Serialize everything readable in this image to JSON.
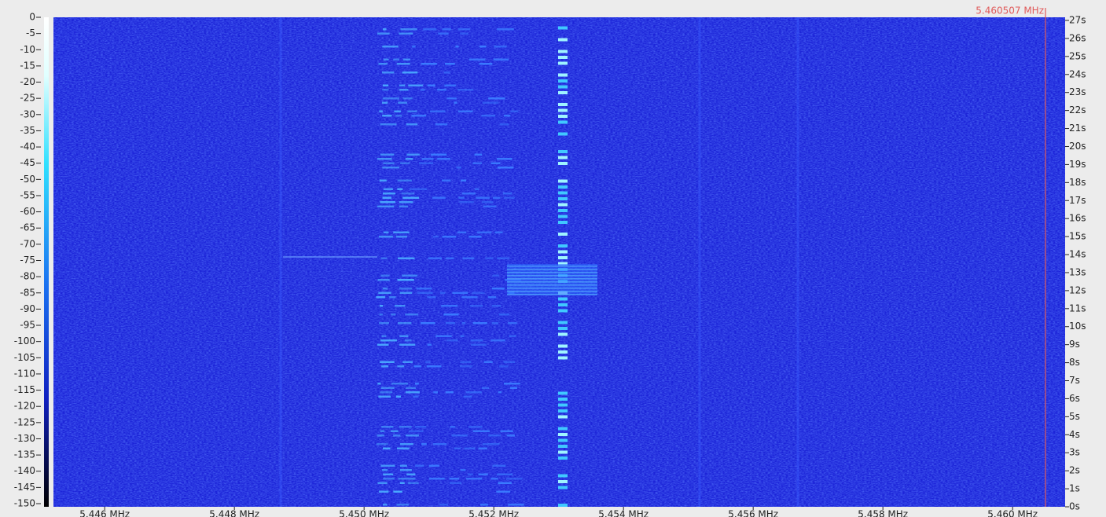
{
  "chart_data": {
    "type": "waterfall",
    "ylim": [
      -150,
      0
    ],
    "yticks": [
      0,
      -5,
      -10,
      -15,
      -20,
      -25,
      -30,
      -35,
      -40,
      -45,
      -50,
      -55,
      -60,
      -65,
      -70,
      -75,
      -80,
      -85,
      -90,
      -95,
      -100,
      -105,
      -110,
      -115,
      -120,
      -125,
      -130,
      -135,
      -140,
      -145,
      -150
    ],
    "y2lim": [
      0,
      27
    ],
    "y2ticks": [
      {
        "value": 0,
        "label": "0s"
      },
      {
        "value": 1,
        "label": "1s"
      },
      {
        "value": 2,
        "label": "2s"
      },
      {
        "value": 3,
        "label": "3s"
      },
      {
        "value": 4,
        "label": "4s"
      },
      {
        "value": 5,
        "label": "5s"
      },
      {
        "value": 6,
        "label": "6s"
      },
      {
        "value": 7,
        "label": "7s"
      },
      {
        "value": 8,
        "label": "8s"
      },
      {
        "value": 9,
        "label": "9s"
      },
      {
        "value": 10,
        "label": "10s"
      },
      {
        "value": 11,
        "label": "11s"
      },
      {
        "value": 12,
        "label": "12s"
      },
      {
        "value": 13,
        "label": "13s"
      },
      {
        "value": 14,
        "label": "14s"
      },
      {
        "value": 15,
        "label": "15s"
      },
      {
        "value": 16,
        "label": "16s"
      },
      {
        "value": 17,
        "label": "17s"
      },
      {
        "value": 18,
        "label": "18s"
      },
      {
        "value": 19,
        "label": "19s"
      },
      {
        "value": 20,
        "label": "20s"
      },
      {
        "value": 21,
        "label": "21s"
      },
      {
        "value": 22,
        "label": "22s"
      },
      {
        "value": 23,
        "label": "23s"
      },
      {
        "value": 24,
        "label": "24s"
      },
      {
        "value": 25,
        "label": "25s"
      },
      {
        "value": 26,
        "label": "26s"
      },
      {
        "value": 27,
        "label": "27s"
      }
    ],
    "xlim": [
      5.44521,
      5.46081
    ],
    "xticks": [
      {
        "value": 5.446,
        "label": "5.446 MHz"
      },
      {
        "value": 5.448,
        "label": "5.448 MHz"
      },
      {
        "value": 5.45,
        "label": "5.450 MHz"
      },
      {
        "value": 5.452,
        "label": "5.452 MHz"
      },
      {
        "value": 5.454,
        "label": "5.454 MHz"
      },
      {
        "value": 5.456,
        "label": "5.456 MHz"
      },
      {
        "value": 5.458,
        "label": "5.458 MHz"
      },
      {
        "value": 5.46,
        "label": "5.460 MHz"
      }
    ],
    "marker": {
      "value": 5.460507,
      "label": "5.460507 MHz",
      "color": "#e05a5a"
    }
  }
}
